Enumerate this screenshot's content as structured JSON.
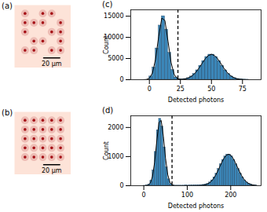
{
  "chart_data": [
    {
      "type": "image",
      "title": "(a)",
      "tick_labels": false,
      "xlim": [
        0,
        70
      ],
      "ylim": [
        0,
        75
      ],
      "color": "#a50f15",
      "spots": {
        "x": [
          13,
          35,
          46,
          13,
          24,
          35,
          57,
          13,
          46,
          57,
          24,
          35,
          57,
          13,
          24,
          46,
          57
        ],
        "y": [
          10,
          10,
          10,
          21,
          21,
          21,
          21,
          32,
          32,
          32,
          43,
          43,
          43,
          54,
          54,
          54,
          54
        ]
      },
      "scale_bar": {
        "length": 20,
        "label": "20 μm"
      }
    },
    {
      "type": "image",
      "title": "(b)",
      "tick_labels": false,
      "xlim": [
        0,
        70
      ],
      "ylim": [
        0,
        75
      ],
      "color": "#a50f15",
      "spots": {
        "x": [
          13,
          24,
          35,
          46,
          57,
          13,
          24,
          35,
          46,
          57,
          13,
          24,
          35,
          46,
          57,
          13,
          24,
          35,
          46,
          57,
          13,
          24,
          35,
          46,
          57
        ],
        "y": [
          10,
          10,
          10,
          10,
          10,
          21,
          21,
          21,
          21,
          21,
          32,
          32,
          32,
          32,
          32,
          43,
          43,
          43,
          43,
          43,
          54,
          54,
          54,
          54,
          54
        ]
      },
      "scale_bar": {
        "length": 20,
        "label": "20 μm"
      }
    },
    {
      "type": "histogram",
      "title": "(c)",
      "xlabel": "Detected photons",
      "ylabel": "Count",
      "color": "#3b86b8",
      "xlim": [
        -15,
        90
      ],
      "ylim": [
        0,
        16500
      ],
      "xticks": [
        0,
        25,
        50,
        75
      ],
      "yticks": [
        0,
        5000,
        10000,
        15000
      ],
      "bins": [
        0,
        2.5,
        5,
        7.5,
        10,
        12.5,
        15,
        17.5,
        20,
        22.5,
        25,
        27.5,
        30,
        32.5,
        35,
        37.5,
        40,
        42.5,
        45,
        47.5,
        50,
        52.5,
        55,
        57.5,
        60,
        62.5,
        65,
        67.5,
        70,
        72.5,
        75,
        77.5,
        80
      ],
      "counts": [
        770,
        2900,
        7400,
        12800,
        15000,
        11850,
        6350,
        2300,
        560,
        127,
        74,
        180,
        385,
        765,
        1370,
        2230,
        3300,
        4420,
        5380,
        5930,
        5930,
        5380,
        4420,
        3300,
        2230,
        1370,
        765,
        385,
        180,
        74,
        30,
        10
      ],
      "fit": {
        "color": "#000000",
        "x": [
          -5,
          -2.5,
          0,
          2.5,
          5,
          7.5,
          10,
          12.5,
          15,
          17.5,
          20,
          22.5,
          25,
          27.5,
          30,
          32.5,
          35,
          37.5,
          40,
          42.5,
          45,
          47.5,
          50,
          52.5,
          55,
          57.5,
          60,
          62.5,
          65,
          67.5,
          70,
          72.5,
          75,
          77.5,
          80
        ],
        "values": [
          5,
          50,
          340,
          1570,
          4870,
          10230,
          14540,
          13980,
          9100,
          4010,
          1200,
          256,
          75,
          115,
          265,
          550,
          1035,
          1770,
          2750,
          3870,
          4940,
          5710,
          6000,
          5710,
          4940,
          3870,
          2750,
          1770,
          1035,
          550,
          265,
          115,
          45,
          15,
          5
        ]
      },
      "threshold": {
        "value": 23,
        "color": "#000000",
        "line_style": "dashed"
      }
    },
    {
      "type": "histogram",
      "title": "(d)",
      "xlabel": "Detected photons",
      "ylabel": "Count",
      "color": "#3b86b8",
      "xlim": [
        -30,
        270
      ],
      "ylim": [
        0,
        2400
      ],
      "xticks": [
        0,
        100,
        200
      ],
      "yticks": [
        0,
        1000,
        2000
      ],
      "bins": [
        0,
        5,
        10,
        15,
        20,
        25,
        30,
        35,
        40,
        45,
        50,
        55,
        60,
        65,
        70,
        75,
        80,
        85,
        90,
        95,
        100,
        105,
        110,
        115,
        120,
        125,
        130,
        135,
        140,
        145,
        150,
        155,
        160,
        165,
        170,
        175,
        180,
        185,
        190,
        195,
        200,
        205,
        210,
        215,
        220,
        225,
        230,
        235,
        240,
        245,
        250,
        255,
        260
      ],
      "counts": [
        1,
        7,
        42,
        172,
        523,
        1164,
        1909,
        2298,
        2030,
        1318,
        627,
        220,
        57,
        11,
        3,
        4,
        5,
        4,
        5,
        6,
        5,
        7,
        8,
        10,
        12,
        18,
        22,
        30,
        46,
        65,
        113,
        186,
        288,
        420,
        574,
        737,
        888,
        1007,
        1072,
        1072,
        1007,
        888,
        737,
        574,
        420,
        288,
        186,
        113,
        65,
        35,
        17,
        8
      ],
      "fit": {
        "color": "#000000",
        "x": [
          0,
          5,
          10,
          15,
          20,
          25,
          30,
          35,
          40,
          45,
          50,
          55,
          60,
          65,
          70,
          75,
          80,
          85,
          90,
          95,
          100,
          105,
          110,
          115,
          120,
          125,
          130,
          135,
          140,
          145,
          150,
          155,
          160,
          165,
          170,
          175,
          180,
          185,
          190,
          195,
          200,
          205,
          210,
          215,
          220,
          225,
          230,
          235,
          240,
          245,
          250,
          255,
          260
        ],
        "values": [
          0,
          3,
          18,
          88,
          311,
          810,
          1550,
          2176,
          2244,
          1702,
          945,
          387,
          116,
          26,
          4,
          1,
          0,
          0,
          0,
          0,
          0,
          0,
          0,
          1,
          1,
          2,
          6,
          12,
          25,
          48,
          86,
          146,
          234,
          350,
          494,
          655,
          816,
          953,
          1046,
          1080,
          1046,
          953,
          816,
          655,
          494,
          350,
          234,
          146,
          86,
          48,
          25,
          12,
          6
        ]
      },
      "threshold": {
        "value": 65,
        "color": "#000000",
        "line_style": "dashed"
      }
    }
  ]
}
